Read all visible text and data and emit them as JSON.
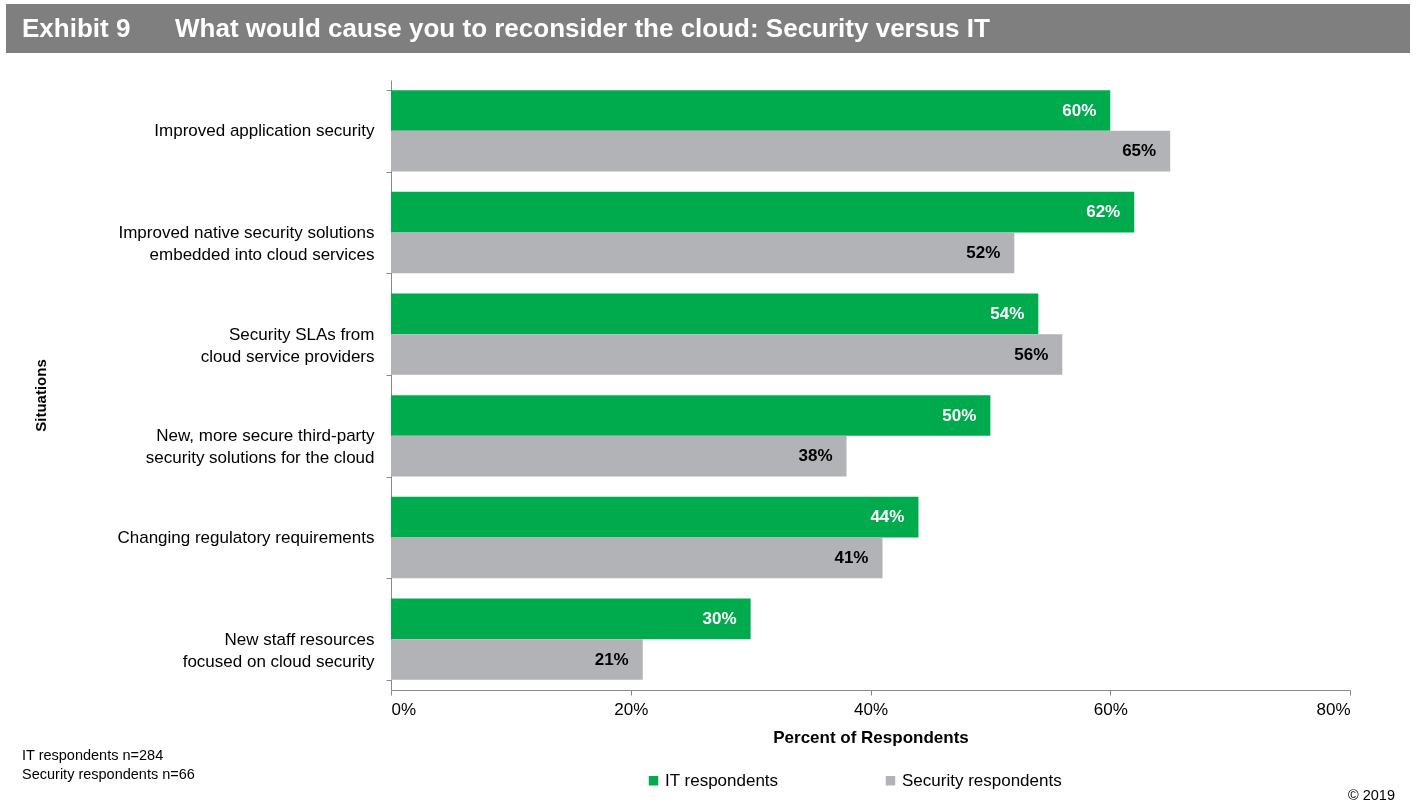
{
  "chart_data": {
    "type": "bar",
    "orientation": "horizontal",
    "title": "Exhibit 9",
    "subtitle": "What would cause you to reconsider the cloud: Security versus IT",
    "xlabel": "Percent of Respondents",
    "ylabel": "Situations",
    "categories": [
      "Improved application security",
      "Improved native security solutions\nembedded into cloud services",
      "Security SLAs from\ncloud service providers",
      "New, more secure third-party\nsecurity solutions for the cloud",
      "Changing regulatory requirements",
      "New staff resources\nfocused on cloud security"
    ],
    "series": [
      {
        "name": "IT respondents",
        "color": "#00ab4e",
        "values": [
          60,
          62,
          54,
          50,
          44,
          30
        ],
        "value_labels": [
          "60%",
          "62%",
          "54%",
          "50%",
          "44%",
          "30%"
        ]
      },
      {
        "name": "Security respondents",
        "color": "#b2b3b7",
        "values": [
          65,
          52,
          56,
          38,
          41,
          21
        ],
        "value_labels": [
          "65%",
          "52%",
          "56%",
          "38%",
          "41%",
          "21%"
        ]
      }
    ],
    "xlim": [
      0,
      80
    ],
    "xticks": [
      {
        "value": 0,
        "label": "0%"
      },
      {
        "value": 20,
        "label": "20%"
      },
      {
        "value": 40,
        "label": "40%"
      },
      {
        "value": 60,
        "label": "60%"
      },
      {
        "value": 80,
        "label": "80%"
      }
    ],
    "grid": false,
    "legend": "bottom",
    "annotations": [
      "IT respondents  n=284",
      "Security respondents  n=66",
      "© 2019"
    ]
  }
}
